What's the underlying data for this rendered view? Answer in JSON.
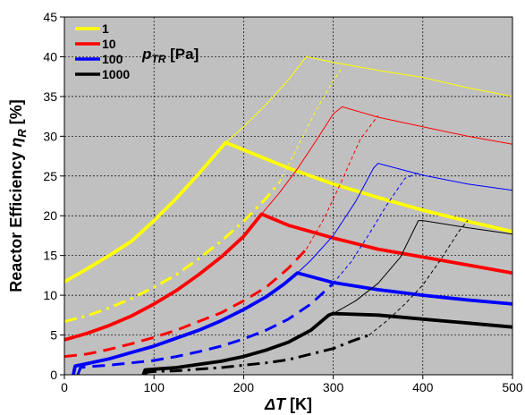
{
  "chart_data": {
    "type": "line",
    "title": "",
    "xlabel": "ΔT [K]",
    "ylabel": "Reactor Efficiency ηR [%]",
    "ylabel_parts": {
      "main": "Reactor Efficiency ",
      "sym": "η",
      "sub": "R",
      "unit": " [%]"
    },
    "xlabel_parts": {
      "sym": "ΔT",
      "unit": " [K]"
    },
    "xlim": [
      0,
      500
    ],
    "ylim": [
      0,
      45
    ],
    "xticks": [
      0,
      100,
      200,
      300,
      400,
      500
    ],
    "yticks": [
      0,
      5,
      10,
      15,
      20,
      25,
      30,
      35,
      40,
      45
    ],
    "grid": true,
    "plot_background": "#c0c0c0",
    "legend": {
      "placement": "top-left",
      "title_sym": "p",
      "title_sub": "TR",
      "title_unit": " [Pa]",
      "entries": [
        {
          "label": "1",
          "color": "#ffff00"
        },
        {
          "label": "10",
          "color": "#ff0000"
        },
        {
          "label": "100",
          "color": "#0000ff"
        },
        {
          "label": "1000",
          "color": "#000000"
        }
      ]
    },
    "series": [
      {
        "name": "1",
        "style": "thick-solid",
        "color": "#ffff00",
        "points": [
          [
            0,
            11.7
          ],
          [
            25,
            13.3
          ],
          [
            50,
            15.0
          ],
          [
            75,
            16.8
          ],
          [
            100,
            19.4
          ],
          [
            125,
            22.2
          ],
          [
            150,
            25.3
          ],
          [
            180,
            29.2
          ],
          [
            250,
            26.0
          ],
          [
            300,
            24.0
          ],
          [
            350,
            22.3
          ],
          [
            400,
            20.7
          ],
          [
            450,
            19.3
          ],
          [
            500,
            18.0
          ]
        ]
      },
      {
        "name": "10",
        "style": "thick-solid",
        "color": "#ff0000",
        "points": [
          [
            0,
            4.4
          ],
          [
            25,
            5.2
          ],
          [
            50,
            6.2
          ],
          [
            75,
            7.4
          ],
          [
            100,
            8.9
          ],
          [
            125,
            10.6
          ],
          [
            150,
            12.6
          ],
          [
            175,
            14.8
          ],
          [
            200,
            17.4
          ],
          [
            220,
            20.2
          ],
          [
            250,
            18.8
          ],
          [
            300,
            17.2
          ],
          [
            350,
            15.8
          ],
          [
            400,
            14.8
          ],
          [
            450,
            13.8
          ],
          [
            500,
            12.8
          ]
        ]
      },
      {
        "name": "100",
        "style": "thick-solid",
        "color": "#0000ff",
        "points": [
          [
            10,
            0.0
          ],
          [
            12,
            1.1
          ],
          [
            25,
            1.4
          ],
          [
            50,
            2.0
          ],
          [
            75,
            2.8
          ],
          [
            100,
            3.6
          ],
          [
            125,
            4.6
          ],
          [
            150,
            5.6
          ],
          [
            175,
            6.8
          ],
          [
            200,
            8.2
          ],
          [
            225,
            9.8
          ],
          [
            245,
            11.4
          ],
          [
            260,
            12.8
          ],
          [
            300,
            11.6
          ],
          [
            350,
            10.7
          ],
          [
            400,
            10.0
          ],
          [
            450,
            9.4
          ],
          [
            500,
            8.9
          ]
        ]
      },
      {
        "name": "1000",
        "style": "thick-solid",
        "color": "#000000",
        "points": [
          [
            88,
            0.0
          ],
          [
            90,
            0.6
          ],
          [
            100,
            0.7
          ],
          [
            125,
            0.9
          ],
          [
            150,
            1.3
          ],
          [
            175,
            1.7
          ],
          [
            200,
            2.3
          ],
          [
            225,
            3.1
          ],
          [
            250,
            4.1
          ],
          [
            275,
            5.6
          ],
          [
            295,
            7.5
          ],
          [
            300,
            7.7
          ],
          [
            350,
            7.5
          ],
          [
            400,
            7.0
          ],
          [
            450,
            6.5
          ],
          [
            500,
            6.0
          ]
        ]
      },
      {
        "name": "1",
        "style": "thick-dashdot",
        "color": "#ffff00",
        "points": [
          [
            0,
            6.7
          ],
          [
            25,
            7.4
          ],
          [
            50,
            8.4
          ],
          [
            75,
            9.6
          ],
          [
            100,
            11.0
          ],
          [
            125,
            12.6
          ],
          [
            150,
            14.6
          ],
          [
            175,
            16.8
          ],
          [
            200,
            19.3
          ],
          [
            225,
            22.2
          ],
          [
            240,
            24.2
          ]
        ]
      },
      {
        "name": "10",
        "style": "thick-dashed",
        "color": "#ff0000",
        "points": [
          [
            0,
            2.3
          ],
          [
            25,
            2.6
          ],
          [
            50,
            3.2
          ],
          [
            75,
            3.9
          ],
          [
            100,
            4.7
          ],
          [
            125,
            5.6
          ],
          [
            150,
            6.7
          ],
          [
            175,
            7.8
          ],
          [
            200,
            9.3
          ],
          [
            225,
            11.0
          ],
          [
            250,
            13.4
          ],
          [
            270,
            15.8
          ]
        ]
      },
      {
        "name": "100",
        "style": "thick-dashed",
        "color": "#0000ff",
        "points": [
          [
            15,
            0.0
          ],
          [
            18,
            0.9
          ],
          [
            25,
            1.0
          ],
          [
            50,
            1.2
          ],
          [
            75,
            1.5
          ],
          [
            100,
            1.8
          ],
          [
            125,
            2.3
          ],
          [
            150,
            2.9
          ],
          [
            175,
            3.6
          ],
          [
            200,
            4.5
          ],
          [
            225,
            5.6
          ],
          [
            250,
            7.0
          ],
          [
            275,
            8.9
          ],
          [
            300,
            11.5
          ]
        ]
      },
      {
        "name": "1000",
        "style": "thick-dashdot",
        "color": "#000000",
        "points": [
          [
            90,
            0.0
          ],
          [
            92,
            0.3
          ],
          [
            100,
            0.4
          ],
          [
            125,
            0.5
          ],
          [
            150,
            0.7
          ],
          [
            175,
            0.9
          ],
          [
            200,
            1.2
          ],
          [
            225,
            1.5
          ],
          [
            250,
            1.9
          ],
          [
            275,
            2.6
          ],
          [
            300,
            3.3
          ],
          [
            320,
            4.2
          ],
          [
            340,
            5.0
          ]
        ]
      },
      {
        "name": "1",
        "style": "thin-solid",
        "color": "#ffff00",
        "points": [
          [
            180,
            29.2
          ],
          [
            200,
            31.2
          ],
          [
            225,
            34.0
          ],
          [
            250,
            37.1
          ],
          [
            270,
            40.0
          ],
          [
            300,
            39.3
          ],
          [
            350,
            38.3
          ],
          [
            400,
            37.4
          ],
          [
            450,
            36.1
          ],
          [
            500,
            35.0
          ]
        ]
      },
      {
        "name": "10",
        "style": "thin-solid",
        "color": "#ff0000",
        "points": [
          [
            220,
            20.2
          ],
          [
            240,
            22.9
          ],
          [
            260,
            25.9
          ],
          [
            280,
            29.3
          ],
          [
            300,
            32.8
          ],
          [
            310,
            33.7
          ],
          [
            350,
            32.4
          ],
          [
            400,
            31.2
          ],
          [
            450,
            30.0
          ],
          [
            500,
            29.0
          ]
        ]
      },
      {
        "name": "100",
        "style": "thin-solid",
        "color": "#0000ff",
        "points": [
          [
            260,
            12.8
          ],
          [
            275,
            14.4
          ],
          [
            300,
            17.5
          ],
          [
            325,
            21.8
          ],
          [
            345,
            26.0
          ],
          [
            350,
            26.6
          ],
          [
            400,
            25.1
          ],
          [
            450,
            24.0
          ],
          [
            500,
            23.2
          ]
        ]
      },
      {
        "name": "1000",
        "style": "thin-solid",
        "color": "#000000",
        "points": [
          [
            300,
            7.7
          ],
          [
            325,
            9.3
          ],
          [
            350,
            11.5
          ],
          [
            375,
            14.8
          ],
          [
            395,
            19.4
          ],
          [
            400,
            19.4
          ],
          [
            450,
            18.5
          ],
          [
            500,
            17.7
          ]
        ]
      },
      {
        "name": "1",
        "style": "thin-dashed",
        "color": "#ffff00",
        "points": [
          [
            240,
            24.2
          ],
          [
            260,
            28.6
          ],
          [
            280,
            33.1
          ],
          [
            300,
            37.0
          ],
          [
            310,
            38.6
          ]
        ]
      },
      {
        "name": "10",
        "style": "thin-dashed",
        "color": "#ff0000",
        "points": [
          [
            270,
            15.8
          ],
          [
            290,
            19.7
          ],
          [
            310,
            24.5
          ],
          [
            330,
            29.6
          ],
          [
            350,
            32.6
          ]
        ]
      },
      {
        "name": "100",
        "style": "thin-dashed",
        "color": "#0000ff",
        "points": [
          [
            300,
            11.5
          ],
          [
            320,
            14.2
          ],
          [
            340,
            17.7
          ],
          [
            360,
            21.4
          ],
          [
            380,
            24.7
          ],
          [
            395,
            25.4
          ]
        ]
      },
      {
        "name": "1000",
        "style": "thin-dashed",
        "color": "#000000",
        "points": [
          [
            340,
            5.0
          ],
          [
            360,
            6.8
          ],
          [
            380,
            8.9
          ],
          [
            400,
            11.3
          ],
          [
            420,
            14.5
          ],
          [
            440,
            18.0
          ],
          [
            450,
            19.4
          ]
        ]
      }
    ]
  }
}
